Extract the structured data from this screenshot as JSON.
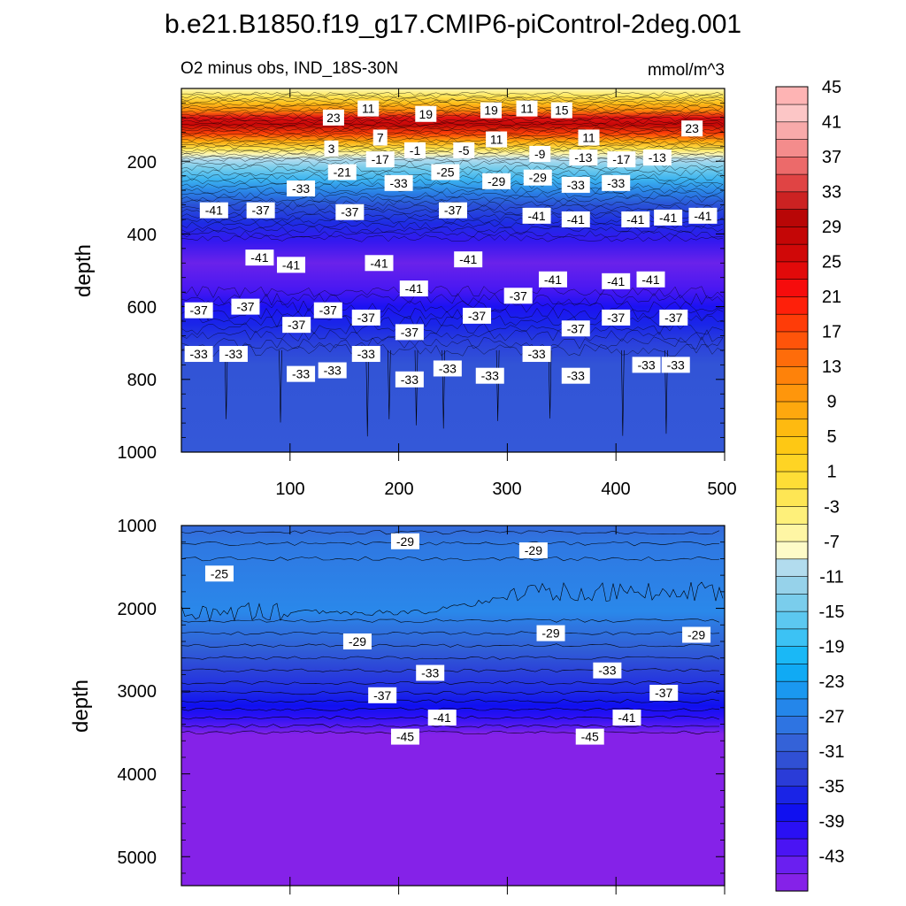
{
  "chart_data": {
    "type": "heatmap",
    "title": "b.e21.B1850.f19_g17.CMIP6-piControl-2deg.001",
    "subtitle": "O2 minus obs, IND_18S-30N",
    "units": "mmol/m^3",
    "colorbar": {
      "levels": [
        -45,
        -43,
        -41,
        -39,
        -37,
        -35,
        -33,
        -31,
        -29,
        -27,
        -25,
        -23,
        -21,
        -19,
        -17,
        -15,
        -13,
        -11,
        -9,
        -7,
        -5,
        -3,
        -1,
        1,
        3,
        5,
        7,
        9,
        11,
        13,
        15,
        17,
        19,
        21,
        23,
        25,
        27,
        29,
        31,
        33,
        35,
        37,
        39,
        41,
        43,
        45,
        47
      ],
      "labels": [
        "45",
        "41",
        "37",
        "33",
        "29",
        "25",
        "21",
        "17",
        "13",
        "9",
        "5",
        "1",
        "-3",
        "-7",
        "-11",
        "-15",
        "-19",
        "-23",
        "-27",
        "-31",
        "-35",
        "-39",
        "-43"
      ],
      "colors": [
        "#8522e8",
        "#6a1ff0",
        "#4a14f4",
        "#2a10f4",
        "#1010f0",
        "#1a24e6",
        "#2a3cd8",
        "#3050d4",
        "#3462d8",
        "#2e74e2",
        "#2486ea",
        "#1a98f0",
        "#10aaf4",
        "#1ab8f6",
        "#3cc2f4",
        "#5cc8f0",
        "#7acdec",
        "#96d2ea",
        "#b2dcee",
        "#fefbc8",
        "#fef6a4",
        "#fef07a",
        "#fee654",
        "#fede36",
        "#fed424",
        "#fec814",
        "#feba10",
        "#fea80e",
        "#fe960c",
        "#fe820a",
        "#fe6c0a",
        "#fe540a",
        "#fe3c08",
        "#fe200a",
        "#f60c0c",
        "#e20a0a",
        "#d00808",
        "#c40606",
        "#b80606",
        "#cc2222",
        "#e04444",
        "#ec6a6a",
        "#f48c8c",
        "#f8aaaa",
        "#fcc6c6",
        "#feb4b4"
      ]
    },
    "panels": [
      {
        "name": "upper",
        "ylabel": "depth",
        "ylim": [
          0,
          1000
        ],
        "yticks": [
          "200",
          "400",
          "600",
          "800",
          "1000"
        ],
        "xlim": [
          0,
          500
        ],
        "xticks": [
          "100",
          "200",
          "300",
          "400",
          "500"
        ],
        "contour_labels": [
          {
            "text": "23",
            "x": 140,
            "d": 80
          },
          {
            "text": "11",
            "x": 172,
            "d": 55
          },
          {
            "text": "19",
            "x": 225,
            "d": 70
          },
          {
            "text": "19",
            "x": 285,
            "d": 60
          },
          {
            "text": "11",
            "x": 318,
            "d": 55
          },
          {
            "text": "15",
            "x": 350,
            "d": 60
          },
          {
            "text": "23",
            "x": 470,
            "d": 110
          },
          {
            "text": "7",
            "x": 183,
            "d": 135
          },
          {
            "text": "11",
            "x": 290,
            "d": 140
          },
          {
            "text": "11",
            "x": 375,
            "d": 135
          },
          {
            "text": "3",
            "x": 138,
            "d": 165
          },
          {
            "text": "-1",
            "x": 215,
            "d": 170
          },
          {
            "text": "-5",
            "x": 260,
            "d": 170
          },
          {
            "text": "-9",
            "x": 330,
            "d": 180
          },
          {
            "text": "-13",
            "x": 370,
            "d": 190
          },
          {
            "text": "-17",
            "x": 405,
            "d": 195
          },
          {
            "text": "-13",
            "x": 438,
            "d": 190
          },
          {
            "text": "-17",
            "x": 183,
            "d": 195
          },
          {
            "text": "-21",
            "x": 148,
            "d": 230
          },
          {
            "text": "-25",
            "x": 243,
            "d": 230
          },
          {
            "text": "-29",
            "x": 290,
            "d": 255
          },
          {
            "text": "-29",
            "x": 328,
            "d": 245
          },
          {
            "text": "-33",
            "x": 200,
            "d": 260
          },
          {
            "text": "-33",
            "x": 363,
            "d": 265
          },
          {
            "text": "-33",
            "x": 400,
            "d": 260
          },
          {
            "text": "-33",
            "x": 110,
            "d": 275
          },
          {
            "text": "-41",
            "x": 30,
            "d": 335
          },
          {
            "text": "-37",
            "x": 73,
            "d": 335
          },
          {
            "text": "-37",
            "x": 155,
            "d": 340
          },
          {
            "text": "-37",
            "x": 250,
            "d": 335
          },
          {
            "text": "-41",
            "x": 327,
            "d": 350
          },
          {
            "text": "-41",
            "x": 363,
            "d": 360
          },
          {
            "text": "-41",
            "x": 418,
            "d": 360
          },
          {
            "text": "-41",
            "x": 448,
            "d": 355
          },
          {
            "text": "-41",
            "x": 480,
            "d": 350
          },
          {
            "text": "-41",
            "x": 72,
            "d": 465
          },
          {
            "text": "-41",
            "x": 101,
            "d": 485
          },
          {
            "text": "-41",
            "x": 182,
            "d": 480
          },
          {
            "text": "-41",
            "x": 264,
            "d": 470
          },
          {
            "text": "-41",
            "x": 214,
            "d": 550
          },
          {
            "text": "-41",
            "x": 342,
            "d": 525
          },
          {
            "text": "-41",
            "x": 400,
            "d": 530
          },
          {
            "text": "-41",
            "x": 432,
            "d": 525
          },
          {
            "text": "-37",
            "x": 16,
            "d": 610
          },
          {
            "text": "-37",
            "x": 59,
            "d": 600
          },
          {
            "text": "-37",
            "x": 135,
            "d": 610
          },
          {
            "text": "-37",
            "x": 106,
            "d": 650
          },
          {
            "text": "-37",
            "x": 170,
            "d": 630
          },
          {
            "text": "-37",
            "x": 210,
            "d": 670
          },
          {
            "text": "-37",
            "x": 272,
            "d": 625
          },
          {
            "text": "-37",
            "x": 310,
            "d": 570
          },
          {
            "text": "-37",
            "x": 363,
            "d": 660
          },
          {
            "text": "-37",
            "x": 400,
            "d": 630
          },
          {
            "text": "-37",
            "x": 453,
            "d": 630
          },
          {
            "text": "-33",
            "x": 16,
            "d": 730
          },
          {
            "text": "-33",
            "x": 48,
            "d": 730
          },
          {
            "text": "-33",
            "x": 110,
            "d": 785
          },
          {
            "text": "-33",
            "x": 139,
            "d": 775
          },
          {
            "text": "-33",
            "x": 170,
            "d": 730
          },
          {
            "text": "-33",
            "x": 210,
            "d": 800
          },
          {
            "text": "-33",
            "x": 245,
            "d": 770
          },
          {
            "text": "-33",
            "x": 284,
            "d": 790
          },
          {
            "text": "-33",
            "x": 327,
            "d": 730
          },
          {
            "text": "-33",
            "x": 363,
            "d": 790
          },
          {
            "text": "-33",
            "x": 428,
            "d": 760
          },
          {
            "text": "-33",
            "x": 455,
            "d": 760
          }
        ]
      },
      {
        "name": "lower",
        "ylabel": "depth",
        "ylim": [
          1000,
          5350
        ],
        "yticks": [
          "1000",
          "2000",
          "3000",
          "4000",
          "5000"
        ],
        "xlim": [
          0,
          500
        ],
        "contour_labels": [
          {
            "text": "-29",
            "x": 206,
            "d": 1190
          },
          {
            "text": "-29",
            "x": 324,
            "d": 1300
          },
          {
            "text": "-25",
            "x": 35,
            "d": 1580
          },
          {
            "text": "-29",
            "x": 162,
            "d": 2400
          },
          {
            "text": "-29",
            "x": 340,
            "d": 2300
          },
          {
            "text": "-29",
            "x": 474,
            "d": 2320
          },
          {
            "text": "-33",
            "x": 229,
            "d": 2780
          },
          {
            "text": "-33",
            "x": 392,
            "d": 2750
          },
          {
            "text": "-37",
            "x": 185,
            "d": 3050
          },
          {
            "text": "-37",
            "x": 444,
            "d": 3020
          },
          {
            "text": "-41",
            "x": 240,
            "d": 3320
          },
          {
            "text": "-41",
            "x": 410,
            "d": 3320
          },
          {
            "text": "-45",
            "x": 206,
            "d": 3550
          },
          {
            "text": "-45",
            "x": 376,
            "d": 3550
          }
        ]
      }
    ]
  }
}
